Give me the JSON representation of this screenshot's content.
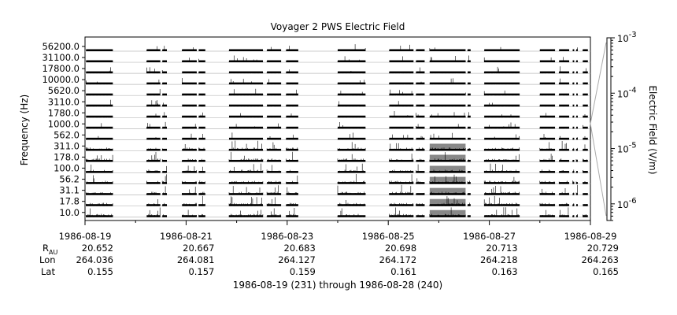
{
  "chart_data": {
    "type": "heatmap",
    "title": "Voyager 2 PWS Electric Field",
    "ylabel": "Frequency (Hz)",
    "colorbar_label": "Electric Field (V/m)",
    "colorbar_scale": "log",
    "colorbar_range": [
      5e-07,
      0.001
    ],
    "colorbar_ticks": [
      {
        "value": 0.001,
        "mantissa": "10",
        "exp": "-3"
      },
      {
        "value": 0.0001,
        "mantissa": "10",
        "exp": "-4"
      },
      {
        "value": 1e-05,
        "mantissa": "10",
        "exp": "-5"
      },
      {
        "value": 1e-06,
        "mantissa": "10",
        "exp": "-6"
      }
    ],
    "x_range": [
      "1986-08-19",
      "1986-08-29"
    ],
    "x_tick_labels": [
      "1986-08-19",
      "1986-08-21",
      "1986-08-23",
      "1986-08-25",
      "1986-08-27",
      "1986-08-29"
    ],
    "x_tick_days": [
      0,
      2,
      4,
      6,
      8,
      10
    ],
    "y_tick_labels": [
      "56200.0",
      "31100.0",
      "17800.0",
      "10000.0",
      "5620.0",
      "3110.0",
      "1780.0",
      "1000.0",
      "562.0",
      "311.0",
      "178.0",
      "100.0",
      "56.2",
      "31.1",
      "17.8",
      "10.0"
    ],
    "channels": [
      "56200.0",
      "31100.0",
      "17800.0",
      "10000.0",
      "5620.0",
      "3110.0",
      "1780.0",
      "1000.0",
      "562.0",
      "311.0",
      "178.0",
      "100.0",
      "56.2",
      "31.1",
      "17.8",
      "10.0"
    ],
    "data_intervals_days": [
      [
        0.02,
        0.55
      ],
      [
        1.22,
        1.49
      ],
      [
        1.53,
        1.62
      ],
      [
        1.92,
        2.21
      ],
      [
        2.25,
        2.38
      ],
      [
        2.85,
        3.52
      ],
      [
        3.6,
        3.88
      ],
      [
        3.98,
        4.22
      ],
      [
        5.0,
        5.55
      ],
      [
        6.02,
        6.5
      ],
      [
        6.55,
        6.72
      ],
      [
        6.82,
        7.53
      ],
      [
        7.57,
        7.63
      ],
      [
        7.9,
        8.6
      ],
      [
        9.0,
        9.3
      ],
      [
        9.38,
        9.58
      ],
      [
        9.65,
        9.68
      ],
      [
        9.72,
        9.75
      ],
      [
        9.85,
        9.95
      ]
    ],
    "ephemeris": {
      "R_label_main": "R",
      "R_label_sub": "AU",
      "Lon_label": "Lon",
      "Lat_label": "Lat",
      "R": [
        "20.652",
        "20.667",
        "20.683",
        "20.698",
        "20.713",
        "20.729"
      ],
      "Lon": [
        "264.036",
        "264.081",
        "264.127",
        "264.172",
        "264.218",
        "264.263"
      ],
      "Lat": [
        "0.155",
        "0.157",
        "0.159",
        "0.161",
        "0.163",
        "0.165"
      ]
    },
    "footer": "1986-08-19 (231) through 1986-08-28 (240)",
    "colors": {
      "background": "#ffffff",
      "trace": "#000000",
      "grid": "#bbbbbb",
      "fill_enhanced": "#888888"
    }
  }
}
